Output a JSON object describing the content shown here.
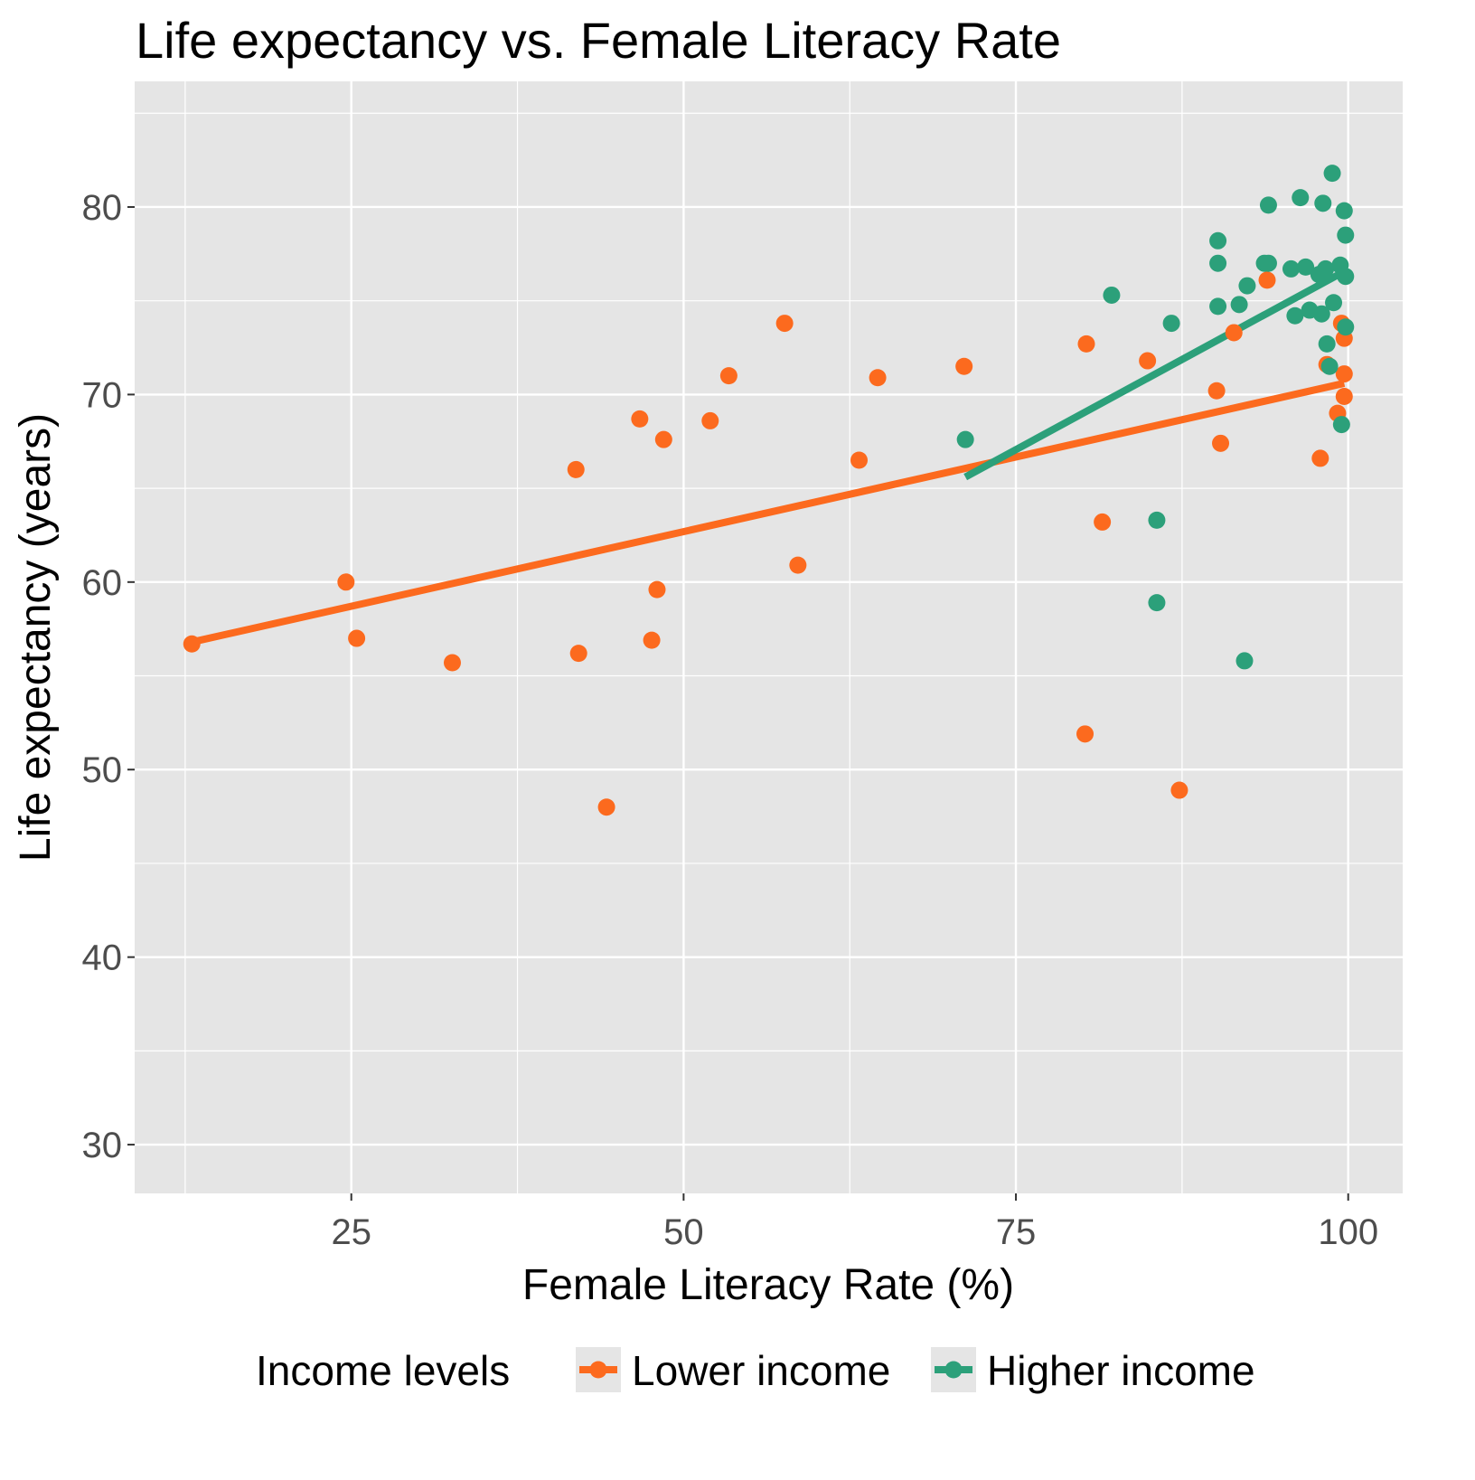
{
  "chart_data": {
    "type": "scatter",
    "title": "Life expectancy vs. Female Literacy Rate",
    "xlabel": "Female Literacy Rate (%)",
    "ylabel": "Life expectancy (years)",
    "xlim": [
      8.7,
      104.1
    ],
    "ylim": [
      27.4,
      86.7
    ],
    "xticks": [
      25,
      50,
      75,
      100
    ],
    "yticks": [
      30,
      40,
      50,
      60,
      70,
      80
    ],
    "grid": true,
    "legend": {
      "title": "Income levels",
      "placement": "bottom"
    },
    "series": [
      {
        "name": "Lower income",
        "color": "#FC6A1E",
        "points": [
          [
            13.0,
            56.7
          ],
          [
            24.6,
            60.0
          ],
          [
            25.4,
            57.0
          ],
          [
            32.6,
            55.7
          ],
          [
            41.9,
            66.0
          ],
          [
            42.1,
            56.2
          ],
          [
            44.2,
            48.0
          ],
          [
            46.7,
            68.7
          ],
          [
            47.6,
            56.9
          ],
          [
            48.0,
            59.6
          ],
          [
            48.5,
            67.6
          ],
          [
            52.0,
            68.6
          ],
          [
            53.4,
            71.0
          ],
          [
            57.6,
            73.8
          ],
          [
            58.6,
            60.9
          ],
          [
            63.2,
            66.5
          ],
          [
            64.6,
            70.9
          ],
          [
            71.1,
            71.5
          ],
          [
            80.2,
            51.9
          ],
          [
            80.3,
            72.7
          ],
          [
            81.5,
            63.2
          ],
          [
            84.9,
            71.8
          ],
          [
            87.3,
            48.9
          ],
          [
            90.1,
            70.2
          ],
          [
            90.4,
            67.4
          ],
          [
            91.4,
            73.3
          ],
          [
            93.9,
            76.1
          ],
          [
            97.9,
            66.6
          ],
          [
            98.4,
            71.6
          ],
          [
            99.2,
            69.0
          ],
          [
            99.5,
            73.8
          ],
          [
            99.7,
            73.0
          ],
          [
            99.7,
            71.1
          ],
          [
            99.7,
            69.9
          ]
        ],
        "fit": [
          [
            13.0,
            56.8
          ],
          [
            99.7,
            70.6
          ]
        ]
      },
      {
        "name": "Higher income",
        "color": "#2CA07A",
        "points": [
          [
            71.2,
            67.6
          ],
          [
            82.2,
            75.3
          ],
          [
            85.6,
            63.3
          ],
          [
            85.6,
            58.9
          ],
          [
            86.7,
            73.8
          ],
          [
            90.2,
            78.2
          ],
          [
            90.2,
            77.0
          ],
          [
            90.2,
            74.7
          ],
          [
            91.8,
            74.8
          ],
          [
            92.2,
            55.8
          ],
          [
            92.4,
            75.8
          ],
          [
            93.7,
            77.0
          ],
          [
            94.0,
            77.0
          ],
          [
            94.0,
            80.1
          ],
          [
            95.7,
            76.7
          ],
          [
            96.0,
            74.2
          ],
          [
            96.4,
            80.5
          ],
          [
            96.8,
            76.8
          ],
          [
            97.1,
            74.5
          ],
          [
            97.8,
            76.4
          ],
          [
            98.0,
            74.3
          ],
          [
            98.1,
            80.2
          ],
          [
            98.3,
            76.7
          ],
          [
            98.4,
            72.7
          ],
          [
            98.6,
            71.5
          ],
          [
            98.8,
            81.8
          ],
          [
            98.9,
            74.9
          ],
          [
            99.4,
            76.9
          ],
          [
            99.5,
            68.4
          ],
          [
            99.7,
            79.8
          ],
          [
            99.8,
            76.3
          ],
          [
            99.8,
            78.5
          ],
          [
            99.8,
            73.6
          ]
        ],
        "fit": [
          [
            71.2,
            65.6
          ],
          [
            99.8,
            76.6
          ]
        ]
      }
    ]
  }
}
